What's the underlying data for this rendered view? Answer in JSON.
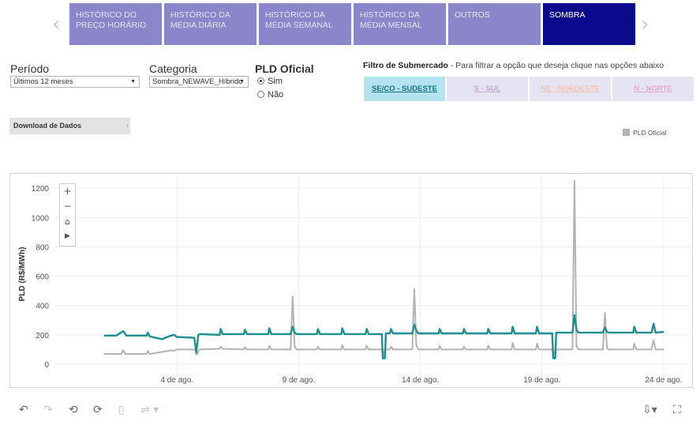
{
  "nav": {
    "prev_icon": "chevron-left-icon",
    "next_icon": "chevron-right-icon",
    "tabs": [
      {
        "label": "HISTÓRICO DO PREÇO HORÁRIO",
        "active": false
      },
      {
        "label": "HISTÓRICO DA MÉDIA DIÁRIA",
        "active": false
      },
      {
        "label": "HISTÓRICO DA MÉDIA SEMANAL",
        "active": false
      },
      {
        "label": "HISTÓRICO DA MÉDIA MENSAL",
        "active": false
      },
      {
        "label": "OUTROS",
        "active": false
      },
      {
        "label": "SOMBRA",
        "active": true
      }
    ]
  },
  "filters": {
    "periodo": {
      "label": "Período",
      "value": "Últimos 12 meses"
    },
    "categoria": {
      "label": "Categoria",
      "value": "Sombra_NEWAVE_Híbrido"
    },
    "pld_oficial": {
      "label": "PLD Oficial",
      "options": [
        "Sim",
        "Não"
      ],
      "selected": "Sim"
    }
  },
  "submercado": {
    "title_bold": "Filtro de Submercado",
    "title_rest": " - Para filtrar a opção que deseja clique nas opções abaixo",
    "buttons": [
      {
        "label": "SE/CO - SUDESTE",
        "bg": "#b2e3ee",
        "color": "#1a6f80",
        "selected": true
      },
      {
        "label": "S - SUL",
        "bg": "#e6e4f3",
        "color": "#c4a6d6",
        "selected": false
      },
      {
        "label": "NE - NORDESTE",
        "bg": "#e6e4f3",
        "color": "#f0c4b3",
        "selected": false
      },
      {
        "label": "N - NORTE",
        "bg": "#e6e4f3",
        "color": "#e3a9c8",
        "selected": false
      }
    ]
  },
  "download": {
    "label": "Download de Dados"
  },
  "legend": {
    "label": "PLD Oficial",
    "color": "#b3b3b3"
  },
  "zoom": {
    "zoom_in": "+",
    "zoom_out": "−"
  },
  "toolbar": {
    "icons": [
      "undo-icon",
      "redo-icon",
      "revert-icon",
      "refresh-icon",
      "pause-icon",
      "share-icon",
      "download-icon",
      "fullscreen-icon"
    ]
  },
  "chart_data": {
    "type": "line",
    "ylabel": "PLD (R$/MWh)",
    "ylim": [
      0,
      1300
    ],
    "yticks": [
      0,
      200,
      400,
      600,
      800,
      1000,
      1200
    ],
    "xlim": [
      "2024-07-31",
      "2024-08-24"
    ],
    "xticks": [
      {
        "date": "2024-08-04",
        "label": "4 de ago."
      },
      {
        "date": "2024-08-09",
        "label": "9 de ago."
      },
      {
        "date": "2024-08-14",
        "label": "14 de ago."
      },
      {
        "date": "2024-08-19",
        "label": "19 de ago."
      },
      {
        "date": "2024-08-24",
        "label": "24 de ago."
      }
    ],
    "grid": true,
    "legend_position": "top-right",
    "series": [
      {
        "name": "PLD Oficial",
        "color": "#b3b3b3",
        "points": [
          [
            "2024-08-01T00:00",
            70
          ],
          [
            "2024-08-01T17:00",
            70
          ],
          [
            "2024-08-01T19:00",
            95
          ],
          [
            "2024-08-01T21:00",
            70
          ],
          [
            "2024-08-02T18:00",
            70
          ],
          [
            "2024-08-02T19:00",
            90
          ],
          [
            "2024-08-02T21:00",
            70
          ],
          [
            "2024-08-03T19:00",
            95
          ],
          [
            "2024-08-03T21:00",
            90
          ],
          [
            "2024-08-04T00:00",
            100
          ],
          [
            "2024-08-04T18:00",
            100
          ],
          [
            "2024-08-04T19:00",
            65
          ],
          [
            "2024-08-04T20:00",
            70
          ],
          [
            "2024-08-04T22:00",
            100
          ],
          [
            "2024-08-05T18:00",
            105
          ],
          [
            "2024-08-05T19:00",
            120
          ],
          [
            "2024-08-05T21:00",
            105
          ],
          [
            "2024-08-06T18:00",
            100
          ],
          [
            "2024-08-06T19:00",
            115
          ],
          [
            "2024-08-06T21:00",
            100
          ],
          [
            "2024-08-07T18:00",
            100
          ],
          [
            "2024-08-07T19:00",
            125
          ],
          [
            "2024-08-07T21:00",
            100
          ],
          [
            "2024-08-08T16:00",
            100
          ],
          [
            "2024-08-08T18:00",
            460
          ],
          [
            "2024-08-08T20:00",
            120
          ],
          [
            "2024-08-08T22:00",
            100
          ],
          [
            "2024-08-09T18:00",
            100
          ],
          [
            "2024-08-09T19:00",
            120
          ],
          [
            "2024-08-09T21:00",
            100
          ],
          [
            "2024-08-10T18:00",
            100
          ],
          [
            "2024-08-10T19:00",
            130
          ],
          [
            "2024-08-10T21:00",
            100
          ],
          [
            "2024-08-11T18:00",
            100
          ],
          [
            "2024-08-11T19:00",
            125
          ],
          [
            "2024-08-11T21:00",
            100
          ],
          [
            "2024-08-12T10:00",
            100
          ],
          [
            "2024-08-12T11:00",
            70
          ],
          [
            "2024-08-12T12:00",
            70
          ],
          [
            "2024-08-12T13:00",
            100
          ],
          [
            "2024-08-12T18:00",
            100
          ],
          [
            "2024-08-12T19:00",
            120
          ],
          [
            "2024-08-12T21:00",
            100
          ],
          [
            "2024-08-13T16:00",
            100
          ],
          [
            "2024-08-13T18:00",
            510
          ],
          [
            "2024-08-13T20:00",
            130
          ],
          [
            "2024-08-13T22:00",
            100
          ],
          [
            "2024-08-14T18:00",
            100
          ],
          [
            "2024-08-14T19:00",
            125
          ],
          [
            "2024-08-14T21:00",
            100
          ],
          [
            "2024-08-15T18:00",
            100
          ],
          [
            "2024-08-15T19:00",
            120
          ],
          [
            "2024-08-15T21:00",
            100
          ],
          [
            "2024-08-16T18:00",
            100
          ],
          [
            "2024-08-16T19:00",
            125
          ],
          [
            "2024-08-16T21:00",
            100
          ],
          [
            "2024-08-17T18:00",
            100
          ],
          [
            "2024-08-17T19:00",
            145
          ],
          [
            "2024-08-17T21:00",
            100
          ],
          [
            "2024-08-18T18:00",
            100
          ],
          [
            "2024-08-18T19:00",
            140
          ],
          [
            "2024-08-18T21:00",
            100
          ],
          [
            "2024-08-19T10:00",
            100
          ],
          [
            "2024-08-19T11:00",
            70
          ],
          [
            "2024-08-19T12:00",
            70
          ],
          [
            "2024-08-19T13:00",
            100
          ],
          [
            "2024-08-20T06:00",
            100
          ],
          [
            "2024-08-20T08:00",
            1250
          ],
          [
            "2024-08-20T10:00",
            120
          ],
          [
            "2024-08-20T12:00",
            100
          ],
          [
            "2024-08-21T12:00",
            100
          ],
          [
            "2024-08-21T14:00",
            350
          ],
          [
            "2024-08-21T16:00",
            110
          ],
          [
            "2024-08-21T18:00",
            100
          ],
          [
            "2024-08-22T18:00",
            100
          ],
          [
            "2024-08-22T19:00",
            140
          ],
          [
            "2024-08-22T21:00",
            100
          ],
          [
            "2024-08-23T12:00",
            100
          ],
          [
            "2024-08-23T14:00",
            165
          ],
          [
            "2024-08-23T16:00",
            100
          ],
          [
            "2024-08-24T00:00",
            100
          ]
        ]
      },
      {
        "name": "",
        "color": "#1b8f91",
        "points": [
          [
            "2024-08-01T00:00",
            195
          ],
          [
            "2024-08-01T12:00",
            195
          ],
          [
            "2024-08-01T19:00",
            225
          ],
          [
            "2024-08-01T22:00",
            195
          ],
          [
            "2024-08-02T18:00",
            195
          ],
          [
            "2024-08-02T19:00",
            215
          ],
          [
            "2024-08-02T21:00",
            190
          ],
          [
            "2024-08-03T09:00",
            170
          ],
          [
            "2024-08-03T18:00",
            195
          ],
          [
            "2024-08-03T21:00",
            200
          ],
          [
            "2024-08-04T00:00",
            185
          ],
          [
            "2024-08-04T17:00",
            180
          ],
          [
            "2024-08-04T19:00",
            80
          ],
          [
            "2024-08-04T21:00",
            200
          ],
          [
            "2024-08-04T23:00",
            205
          ],
          [
            "2024-08-05T18:00",
            200
          ],
          [
            "2024-08-05T19:00",
            240
          ],
          [
            "2024-08-05T21:00",
            205
          ],
          [
            "2024-08-06T18:00",
            205
          ],
          [
            "2024-08-06T19:00",
            235
          ],
          [
            "2024-08-06T21:00",
            205
          ],
          [
            "2024-08-07T18:00",
            205
          ],
          [
            "2024-08-07T19:00",
            245
          ],
          [
            "2024-08-07T21:00",
            205
          ],
          [
            "2024-08-08T16:00",
            205
          ],
          [
            "2024-08-08T18:00",
            255
          ],
          [
            "2024-08-08T20:00",
            215
          ],
          [
            "2024-08-08T22:00",
            205
          ],
          [
            "2024-08-09T18:00",
            205
          ],
          [
            "2024-08-09T19:00",
            240
          ],
          [
            "2024-08-09T21:00",
            205
          ],
          [
            "2024-08-10T18:00",
            205
          ],
          [
            "2024-08-10T19:00",
            245
          ],
          [
            "2024-08-10T21:00",
            205
          ],
          [
            "2024-08-11T18:00",
            205
          ],
          [
            "2024-08-11T19:00",
            240
          ],
          [
            "2024-08-11T21:00",
            205
          ],
          [
            "2024-08-12T10:00",
            205
          ],
          [
            "2024-08-12T11:00",
            40
          ],
          [
            "2024-08-12T13:00",
            40
          ],
          [
            "2024-08-12T14:00",
            210
          ],
          [
            "2024-08-12T18:00",
            210
          ],
          [
            "2024-08-12T19:00",
            240
          ],
          [
            "2024-08-12T21:00",
            210
          ],
          [
            "2024-08-13T16:00",
            210
          ],
          [
            "2024-08-13T18:00",
            270
          ],
          [
            "2024-08-13T20:00",
            230
          ],
          [
            "2024-08-13T22:00",
            210
          ],
          [
            "2024-08-14T18:00",
            210
          ],
          [
            "2024-08-14T19:00",
            240
          ],
          [
            "2024-08-14T21:00",
            210
          ],
          [
            "2024-08-15T18:00",
            210
          ],
          [
            "2024-08-15T19:00",
            240
          ],
          [
            "2024-08-15T21:00",
            210
          ],
          [
            "2024-08-16T18:00",
            210
          ],
          [
            "2024-08-16T19:00",
            240
          ],
          [
            "2024-08-16T21:00",
            210
          ],
          [
            "2024-08-17T18:00",
            210
          ],
          [
            "2024-08-17T19:00",
            255
          ],
          [
            "2024-08-17T21:00",
            210
          ],
          [
            "2024-08-18T18:00",
            210
          ],
          [
            "2024-08-18T19:00",
            255
          ],
          [
            "2024-08-18T21:00",
            210
          ],
          [
            "2024-08-19T10:00",
            210
          ],
          [
            "2024-08-19T11:00",
            40
          ],
          [
            "2024-08-19T13:00",
            40
          ],
          [
            "2024-08-19T14:00",
            215
          ],
          [
            "2024-08-20T06:00",
            215
          ],
          [
            "2024-08-20T08:00",
            335
          ],
          [
            "2024-08-20T10:00",
            235
          ],
          [
            "2024-08-20T12:00",
            215
          ],
          [
            "2024-08-21T12:00",
            215
          ],
          [
            "2024-08-21T14:00",
            250
          ],
          [
            "2024-08-21T16:00",
            220
          ],
          [
            "2024-08-21T18:00",
            215
          ],
          [
            "2024-08-22T18:00",
            215
          ],
          [
            "2024-08-22T19:00",
            255
          ],
          [
            "2024-08-22T21:00",
            215
          ],
          [
            "2024-08-23T12:00",
            215
          ],
          [
            "2024-08-23T14:00",
            275
          ],
          [
            "2024-08-23T16:00",
            215
          ],
          [
            "2024-08-24T00:00",
            220
          ]
        ]
      }
    ]
  }
}
